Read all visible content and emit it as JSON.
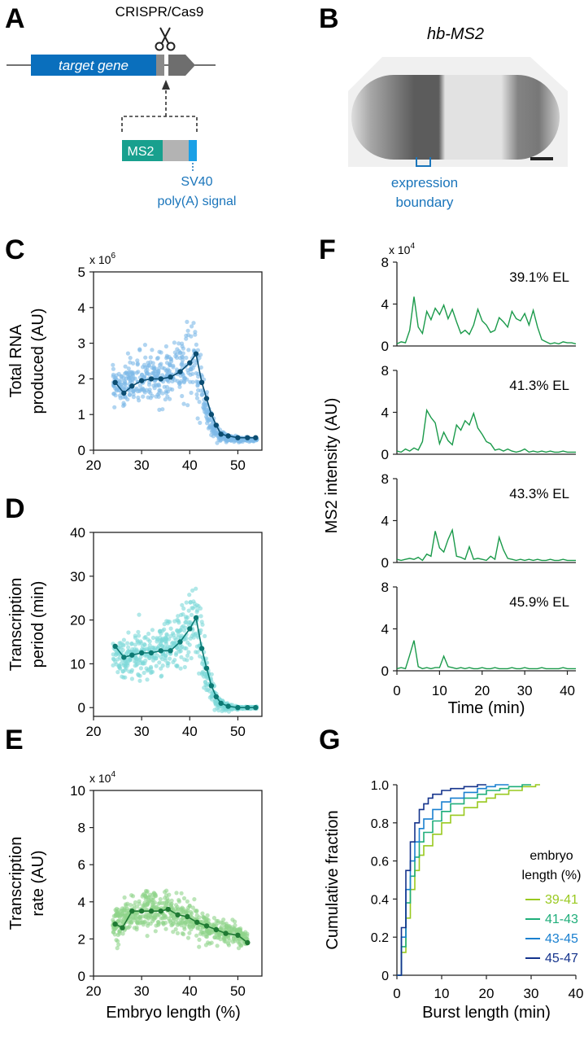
{
  "panels": {
    "a": {
      "letter": "A",
      "tool_label": "CRISPR/Cas9",
      "gene_label": "target gene",
      "insert_label": "MS2",
      "polya_label_1": "SV40",
      "polya_label_2": "poly(A) signal",
      "colors": {
        "gene": "#0a6fbd",
        "grey": "#8a8a8a",
        "ms2": "#18a08e",
        "polya": "#1aa0e6"
      }
    },
    "b": {
      "letter": "B",
      "title": "hb-MS2",
      "boundary_label_1": "expression",
      "boundary_label_2": "boundary",
      "color": "#1a75bb"
    },
    "f": {
      "letter": "F",
      "ylabel": "MS2 intensity (AU)",
      "xlabel": "Time (min)",
      "exponent": "x 10",
      "exponent_power": "4"
    },
    "g": {
      "letter": "G",
      "legend_title_1": "embryo",
      "legend_title_2": "length (%)"
    },
    "shared_xlabel": "Embryo length (%)"
  },
  "chart_data": [
    {
      "id": "C",
      "type": "scatter",
      "letter": "C",
      "ylabel_lines": [
        "Total RNA",
        "produced (AU)"
      ],
      "exponent": "x 10",
      "exponent_power": "6",
      "xlim": [
        20,
        55
      ],
      "ylim": [
        0,
        5
      ],
      "xticks": [
        "20",
        "30",
        "40",
        "50"
      ],
      "yticks": [
        "0",
        "1",
        "2",
        "3",
        "4",
        "5"
      ],
      "xtick_values": [
        20,
        30,
        40,
        50
      ],
      "ytick_values": [
        0,
        1,
        2,
        3,
        4,
        5
      ],
      "point_color": "#7db9e8",
      "line_color": "#0b4d72",
      "scatter_profile": {
        "x": [
          24,
          26,
          28,
          30,
          32,
          34,
          36,
          38,
          40,
          41,
          42,
          43,
          44,
          45,
          46,
          48,
          50,
          52,
          54
        ],
        "center": [
          1.9,
          1.7,
          1.9,
          2.0,
          2.0,
          2.0,
          2.1,
          2.3,
          2.5,
          2.6,
          2.0,
          1.5,
          0.9,
          0.6,
          0.4,
          0.35,
          0.3,
          0.3,
          0.3
        ],
        "spread": [
          0.3,
          0.4,
          0.55,
          0.6,
          0.6,
          0.6,
          0.6,
          0.7,
          0.8,
          0.9,
          0.7,
          0.5,
          0.35,
          0.25,
          0.15,
          0.08,
          0.05,
          0.04,
          0.04
        ]
      },
      "mean_x": [
        24.5,
        26.3,
        28.0,
        30.0,
        32.0,
        34.0,
        36.0,
        38.0,
        40.0,
        41.3,
        42.5,
        43.5,
        44.5,
        45.5,
        46.5,
        48.0,
        50.0,
        52.0,
        53.7
      ],
      "mean_y": [
        1.9,
        1.6,
        1.8,
        1.95,
        2.0,
        2.0,
        2.05,
        2.2,
        2.45,
        2.7,
        1.9,
        1.45,
        1.0,
        0.7,
        0.45,
        0.4,
        0.35,
        0.35,
        0.35
      ]
    },
    {
      "id": "D",
      "type": "scatter",
      "letter": "D",
      "ylabel_lines": [
        "Transcription",
        "period (min)"
      ],
      "xlim": [
        20,
        55
      ],
      "ylim": [
        -2,
        40
      ],
      "xticks": [
        "20",
        "30",
        "40",
        "50"
      ],
      "yticks": [
        "0",
        "10",
        "20",
        "30",
        "40"
      ],
      "xtick_values": [
        20,
        30,
        40,
        50
      ],
      "ytick_values": [
        0,
        10,
        20,
        30,
        40
      ],
      "point_color": "#7dd8d8",
      "line_color": "#0c7a74",
      "scatter_profile": {
        "x": [
          24,
          26,
          28,
          30,
          32,
          34,
          36,
          38,
          40,
          41,
          42,
          43,
          44,
          45,
          46,
          48,
          50,
          52,
          54
        ],
        "center": [
          13,
          11,
          12,
          12,
          12,
          13,
          13,
          16,
          19,
          20,
          15,
          10,
          6,
          3,
          1,
          0,
          0,
          0,
          0
        ],
        "spread": [
          3,
          4,
          4.5,
          5,
          5,
          5,
          5,
          6,
          7,
          8,
          6,
          5,
          3,
          2,
          1.2,
          0.6,
          0.3,
          0.2,
          0.2
        ]
      },
      "mean_x": [
        24.5,
        26.3,
        28.0,
        30.0,
        32.0,
        34.0,
        36.0,
        38.0,
        40.0,
        41.3,
        42.5,
        43.5,
        44.5,
        45.5,
        46.5,
        48.0,
        50.0,
        52.0,
        53.7
      ],
      "mean_y": [
        14,
        11.5,
        12,
        12.5,
        12.5,
        13,
        13,
        15,
        18,
        20.5,
        13.5,
        9,
        5,
        2.5,
        1,
        0.3,
        0,
        0,
        0
      ]
    },
    {
      "id": "E",
      "type": "scatter",
      "letter": "E",
      "ylabel_lines": [
        "Transcription",
        "rate (AU)"
      ],
      "exponent": "x 10",
      "exponent_power": "4",
      "xlim": [
        20,
        55
      ],
      "ylim": [
        0,
        10
      ],
      "xticks": [
        "20",
        "30",
        "40",
        "50"
      ],
      "yticks": [
        "0",
        "2",
        "4",
        "6",
        "8",
        "10"
      ],
      "xtick_values": [
        20,
        30,
        40,
        50
      ],
      "ytick_values": [
        0,
        2,
        4,
        6,
        8,
        10
      ],
      "point_color": "#8fd48a",
      "line_color": "#1f7a33",
      "scatter_profile": {
        "x": [
          24,
          26,
          28,
          30,
          32,
          34,
          36,
          38,
          40,
          42,
          44,
          46,
          48,
          50,
          52
        ],
        "center": [
          2.8,
          3.0,
          3.4,
          3.5,
          3.5,
          3.5,
          3.5,
          3.3,
          3.1,
          2.8,
          2.6,
          2.4,
          2.3,
          2.2,
          1.9
        ],
        "spread": [
          0.6,
          0.8,
          0.9,
          0.9,
          0.9,
          0.9,
          0.85,
          0.8,
          0.75,
          0.7,
          0.6,
          0.55,
          0.5,
          0.5,
          0.3
        ]
      },
      "mean_x": [
        24.5,
        26.0,
        28.0,
        30.0,
        32.0,
        34.0,
        35.5,
        37.5,
        39.5,
        41.5,
        43.5,
        45.5,
        47.5,
        50.0,
        52.0
      ],
      "mean_y": [
        2.8,
        2.6,
        3.5,
        3.5,
        3.5,
        3.5,
        3.6,
        3.3,
        3.2,
        2.9,
        2.7,
        2.5,
        2.3,
        2.2,
        1.8
      ]
    },
    {
      "id": "F",
      "type": "line",
      "letter": "F",
      "xlim": [
        0,
        42
      ],
      "ylim": [
        0,
        8
      ],
      "xticks": [
        "0",
        "10",
        "20",
        "30",
        "40"
      ],
      "xtick_values": [
        0,
        10,
        20,
        30,
        40
      ],
      "yticks": [
        "0",
        "4",
        "8"
      ],
      "ytick_values": [
        0,
        4,
        8
      ],
      "color": "#1a9a4a",
      "series": [
        {
          "name": "39.1% EL",
          "x": [
            0,
            1,
            2,
            3,
            4,
            5,
            6,
            7,
            8,
            9,
            10,
            11,
            12,
            13,
            14,
            15,
            16,
            17,
            18,
            19,
            20,
            21,
            22,
            23,
            24,
            25,
            26,
            27,
            28,
            29,
            30,
            31,
            32,
            33,
            34,
            35,
            36,
            37,
            38,
            39,
            40,
            41,
            42
          ],
          "y": [
            0.2,
            0.4,
            0.3,
            1.5,
            4.7,
            1.8,
            1.2,
            3.3,
            2.5,
            3.6,
            3.0,
            3.9,
            2.6,
            3.5,
            2.3,
            1.2,
            1.5,
            1.1,
            2.0,
            3.5,
            2.4,
            2.0,
            1.3,
            1.5,
            2.7,
            2.3,
            1.8,
            3.3,
            2.6,
            2.4,
            3.1,
            2.0,
            3.4,
            1.8,
            0.6,
            0.4,
            0.2,
            0.3,
            0.2,
            0.4,
            0.3,
            0.3,
            0.2
          ]
        },
        {
          "name": "41.3% EL",
          "x": [
            0,
            1,
            2,
            3,
            4,
            5,
            6,
            7,
            8,
            9,
            10,
            11,
            12,
            13,
            14,
            15,
            16,
            17,
            18,
            19,
            20,
            21,
            22,
            23,
            24,
            25,
            26,
            27,
            28,
            29,
            30,
            31,
            32,
            33,
            34,
            35,
            36,
            37,
            38,
            39,
            40,
            41,
            42
          ],
          "y": [
            0.3,
            0.2,
            0.5,
            0.3,
            0.6,
            0.4,
            1.2,
            4.2,
            3.5,
            3.0,
            1.0,
            2.1,
            1.3,
            0.9,
            2.8,
            2.3,
            3.2,
            2.8,
            3.9,
            2.5,
            1.9,
            1.2,
            1.0,
            0.4,
            0.5,
            0.3,
            0.5,
            0.3,
            0.2,
            0.3,
            0.5,
            0.2,
            0.3,
            0.2,
            0.3,
            0.2,
            0.3,
            0.2,
            0.2,
            0.3,
            0.2,
            0.2,
            0.2
          ]
        },
        {
          "name": "43.3% EL",
          "x": [
            0,
            1,
            2,
            3,
            4,
            5,
            6,
            7,
            8,
            9,
            10,
            11,
            12,
            13,
            14,
            15,
            16,
            17,
            18,
            19,
            20,
            21,
            22,
            23,
            24,
            25,
            26,
            27,
            28,
            29,
            30,
            31,
            32,
            33,
            34,
            35,
            36,
            37,
            38,
            39,
            40,
            41,
            42
          ],
          "y": [
            0.3,
            0.2,
            0.3,
            0.4,
            0.3,
            0.5,
            0.2,
            0.8,
            0.6,
            3.0,
            1.4,
            1.0,
            2.2,
            3.1,
            0.6,
            0.5,
            0.3,
            1.5,
            0.3,
            0.4,
            0.3,
            0.2,
            0.6,
            0.3,
            2.4,
            1.2,
            0.4,
            0.3,
            0.2,
            0.3,
            0.2,
            0.3,
            0.2,
            0.3,
            0.2,
            0.2,
            0.3,
            0.2,
            0.2,
            0.3,
            0.2,
            0.2,
            0.2
          ]
        },
        {
          "name": "45.9% EL",
          "x": [
            0,
            1,
            2,
            3,
            4,
            5,
            6,
            7,
            8,
            9,
            10,
            11,
            12,
            13,
            14,
            15,
            16,
            17,
            18,
            19,
            20,
            21,
            22,
            23,
            24,
            25,
            26,
            27,
            28,
            29,
            30,
            31,
            32,
            33,
            34,
            35,
            36,
            37,
            38,
            39,
            40,
            41,
            42
          ],
          "y": [
            0.2,
            0.3,
            0.2,
            1.5,
            2.9,
            0.4,
            0.2,
            0.3,
            0.2,
            0.3,
            0.3,
            1.4,
            0.4,
            0.3,
            0.2,
            0.3,
            0.2,
            0.3,
            0.2,
            0.2,
            0.3,
            0.2,
            0.2,
            0.3,
            0.2,
            0.2,
            0.2,
            0.3,
            0.2,
            0.2,
            0.3,
            0.2,
            0.2,
            0.2,
            0.3,
            0.2,
            0.2,
            0.2,
            0.2,
            0.3,
            0.2,
            0.2,
            0.2
          ]
        }
      ]
    },
    {
      "id": "G",
      "type": "line",
      "letter": "G",
      "ylabel": "Cumulative fraction",
      "xlabel": "Burst length (min)",
      "xlim": [
        0,
        40
      ],
      "ylim": [
        0,
        1
      ],
      "xticks": [
        "0",
        "10",
        "20",
        "30",
        "40"
      ],
      "xtick_values": [
        0,
        10,
        20,
        30,
        40
      ],
      "yticks": [
        "0",
        "0.2",
        "0.4",
        "0.6",
        "0.8",
        "1.0"
      ],
      "ytick_values": [
        0,
        0.2,
        0.4,
        0.6,
        0.8,
        1.0
      ],
      "series": [
        {
          "name": "39-41",
          "color": "#99c91f",
          "x": [
            0,
            1,
            2,
            3,
            4,
            5,
            6,
            8,
            10,
            12,
            15,
            18,
            20,
            22,
            25,
            28,
            31,
            32
          ],
          "y": [
            0,
            0.12,
            0.3,
            0.45,
            0.55,
            0.63,
            0.68,
            0.74,
            0.8,
            0.84,
            0.88,
            0.91,
            0.93,
            0.95,
            0.97,
            0.99,
            1.0,
            1.0
          ]
        },
        {
          "name": "41-43",
          "color": "#1fae7a",
          "x": [
            0,
            1,
            2,
            3,
            4,
            5,
            6,
            8,
            10,
            12,
            15,
            18,
            20,
            23,
            25,
            28,
            30
          ],
          "y": [
            0,
            0.15,
            0.38,
            0.52,
            0.62,
            0.7,
            0.75,
            0.81,
            0.86,
            0.9,
            0.93,
            0.95,
            0.97,
            0.98,
            0.99,
            1.0,
            1.0
          ]
        },
        {
          "name": "43-45",
          "color": "#1a80d0",
          "x": [
            0,
            1,
            2,
            3,
            4,
            5,
            6,
            8,
            10,
            12,
            15,
            18,
            20,
            22,
            25
          ],
          "y": [
            0,
            0.2,
            0.45,
            0.6,
            0.7,
            0.77,
            0.82,
            0.87,
            0.91,
            0.93,
            0.96,
            0.98,
            0.99,
            1.0,
            1.0
          ]
        },
        {
          "name": "45-47",
          "color": "#14338c",
          "x": [
            0,
            1,
            2,
            3,
            4,
            5,
            6,
            7,
            8,
            10,
            12,
            15,
            18,
            20
          ],
          "y": [
            0,
            0.25,
            0.55,
            0.7,
            0.8,
            0.87,
            0.9,
            0.93,
            0.95,
            0.97,
            0.98,
            0.99,
            1.0,
            1.0
          ]
        }
      ]
    }
  ]
}
